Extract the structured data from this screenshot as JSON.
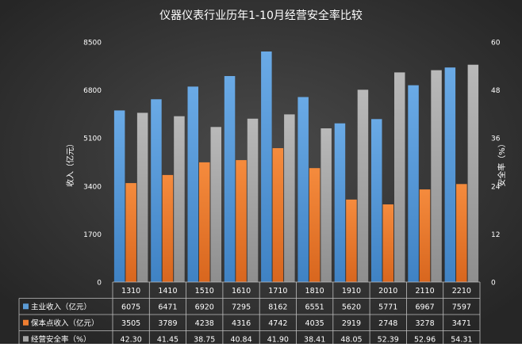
{
  "chart_data": {
    "type": "bar",
    "title": "仪器仪表行业历年1-10月经营安全率比较",
    "ylabel": "收入（亿元）",
    "y2label": "安全率（%）",
    "ylim": [
      0,
      8500
    ],
    "y2lim": [
      0,
      60
    ],
    "yticks": [
      "0",
      "1700",
      "3400",
      "5100",
      "6800",
      "8500"
    ],
    "y2ticks": [
      "0",
      "12",
      "24",
      "36",
      "48",
      "60"
    ],
    "categories": [
      "1310",
      "1410",
      "1510",
      "1610",
      "1710",
      "1810",
      "1910",
      "2010",
      "2110",
      "2210"
    ],
    "series": [
      {
        "name": "主业收入（亿元）",
        "axis": "left",
        "color": "#5b9bd5",
        "values": [
          6075,
          6471,
          6920,
          7295,
          8162,
          6551,
          5620,
          5771,
          6967,
          7597
        ]
      },
      {
        "name": "保本点收入（亿元）",
        "axis": "left",
        "color": "#ed7d31",
        "values": [
          3505,
          3789,
          4238,
          4316,
          4742,
          4035,
          2919,
          2748,
          3278,
          3471
        ]
      },
      {
        "name": "经营安全率（%）",
        "axis": "right",
        "color": "#a5a5a5",
        "values": [
          42.3,
          41.45,
          38.75,
          40.84,
          41.9,
          38.41,
          48.05,
          52.39,
          52.96,
          54.31
        ]
      }
    ],
    "table_values": [
      [
        "6075",
        "6471",
        "6920",
        "7295",
        "8162",
        "6551",
        "5620",
        "5771",
        "6967",
        "7597"
      ],
      [
        "3505",
        "3789",
        "4238",
        "4316",
        "4742",
        "4035",
        "2919",
        "2748",
        "3278",
        "3471"
      ],
      [
        "42.30",
        "41.45",
        "38.75",
        "40.84",
        "41.90",
        "38.41",
        "48.05",
        "52.39",
        "52.96",
        "54.31"
      ]
    ],
    "legend": "data-table",
    "grid": false,
    "background": "#3c3c3c",
    "text_color": "#ffffff"
  }
}
